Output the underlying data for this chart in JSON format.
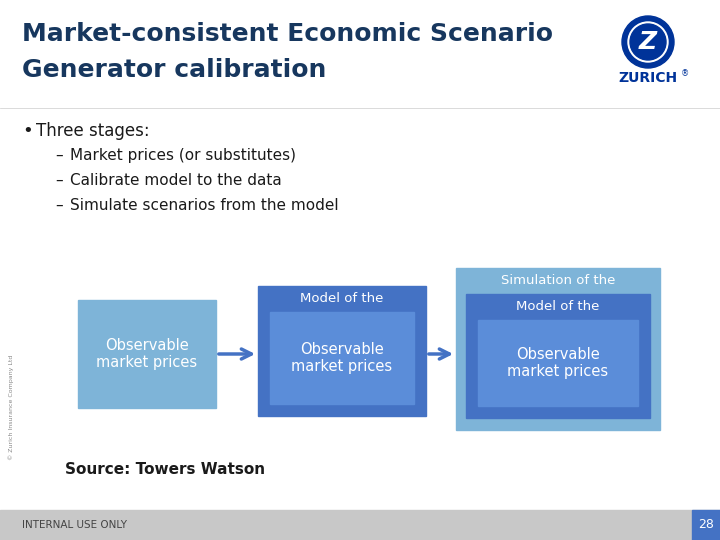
{
  "title_line1": "Market-consistent Economic Scenario",
  "title_line2": "Generator calibration",
  "bullet_text": "Three stages:",
  "sub_bullets": [
    "Market prices (or substitutes)",
    "Calibrate model to the data",
    "Simulate scenarios from the model"
  ],
  "box1_label": "Observable\nmarket prices",
  "box2_outer_label": "Model of the",
  "box2_inner_label": "Observable\nmarket prices",
  "box3_outer_label": "Simulation of the",
  "box3_mid_label": "Model of the",
  "box3_inner_label": "Observable\nmarket prices",
  "source_text": "Source: Towers Watson",
  "footer_text": "INTERNAL USE ONLY",
  "page_num": "28",
  "color_light_blue": "#7eb4d8",
  "color_mid_blue": "#4472c4",
  "color_inner_blue": "#5b8dd9",
  "color_title_blue": "#17375e",
  "color_zurich_blue": "#003399",
  "bottom_bar_color": "#c8c8c8"
}
